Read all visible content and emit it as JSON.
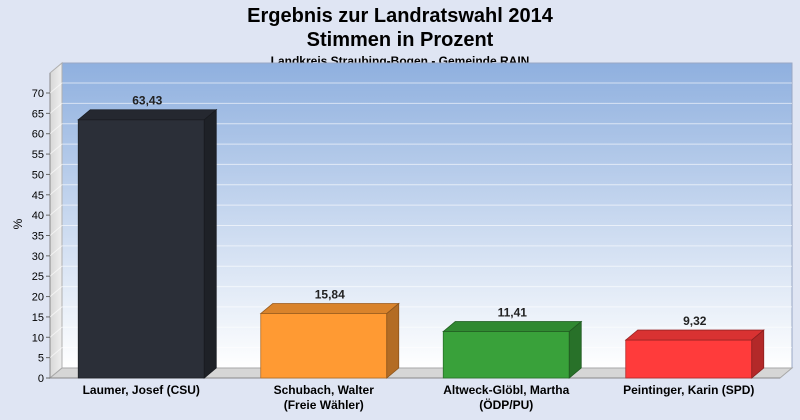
{
  "header": {
    "title_line1": "Ergebnis zur Landratswahl 2014",
    "title_line2": "Stimmen in Prozent",
    "subtitle": "Landkreis Straubing-Bogen - Gemeinde RAIN"
  },
  "chart_data": {
    "type": "bar",
    "ylabel": "%",
    "ylim": [
      0,
      70
    ],
    "yticks": [
      0,
      5,
      10,
      15,
      20,
      25,
      30,
      35,
      40,
      45,
      50,
      55,
      60,
      65,
      70
    ],
    "grid": true,
    "categories": [
      [
        "Laumer, Josef (CSU)"
      ],
      [
        "Schubach, Walter",
        "(Freie Wähler)"
      ],
      [
        "Altweck-Glöbl, Martha",
        "(ÖDP/PU)"
      ],
      [
        "Peintinger, Karin (SPD)"
      ]
    ],
    "values": [
      63.43,
      15.84,
      11.41,
      9.32
    ],
    "value_labels": [
      "63,43",
      "15,84",
      "11,41",
      "9,32"
    ],
    "colors": [
      "#2b2f38",
      "#ff9a33",
      "#39a13a",
      "#ff3b3b"
    ]
  }
}
